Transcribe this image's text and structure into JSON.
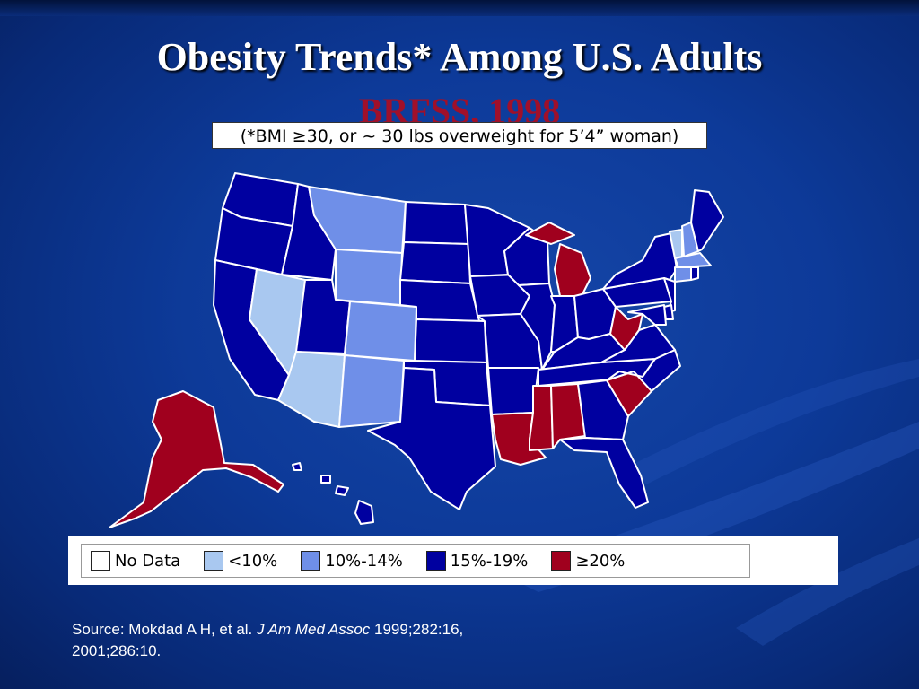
{
  "title": "Obesity Trends* Among U.S. Adults",
  "subtitle": "BRFSS, 1998",
  "note": "(*BMI ≥30, or ~ 30 lbs overweight for 5’4” woman)",
  "colors": {
    "no_data": "#ffffff",
    "lt10": "#a9c8f0",
    "c10_14": "#6f8fe8",
    "c15_19": "#0000a0",
    "ge20": "#a0001e",
    "border": "#ffffff"
  },
  "legend": [
    {
      "label": "No Data",
      "color_key": "no_data"
    },
    {
      "label": "<10%",
      "color_key": "lt10"
    },
    {
      "label": "10%-14%",
      "color_key": "c10_14"
    },
    {
      "label": "15%-19%",
      "color_key": "c15_19"
    },
    {
      "label": "≥20%",
      "color_key": "ge20"
    }
  ],
  "states": {
    "WA": "15-19",
    "OR": "15-19",
    "CA": "15-19",
    "ID": "15-19",
    "NV": "<10",
    "MT": "10-14",
    "WY": "10-14",
    "UT": "15-19",
    "CO": "10-14",
    "AZ": "<10",
    "NM": "10-14",
    "ND": "15-19",
    "SD": "15-19",
    "NE": "15-19",
    "KS": "15-19",
    "OK": "15-19",
    "TX": "15-19",
    "MN": "15-19",
    "IA": "15-19",
    "MO": "15-19",
    "AR": "15-19",
    "LA": ">=20",
    "WI": "15-19",
    "IL": "15-19",
    "MI": ">=20",
    "IN": "15-19",
    "OH": "15-19",
    "KY": "15-19",
    "TN": "15-19",
    "MS": ">=20",
    "AL": ">=20",
    "GA": "15-19",
    "FL": "15-19",
    "SC": ">=20",
    "NC": "15-19",
    "VA": "15-19",
    "WV": ">=20",
    "PA": "15-19",
    "NY": "15-19",
    "VT": "<10",
    "NH": "10-14",
    "ME": "15-19",
    "MA": "10-14",
    "CT": "10-14",
    "RI": "15-19",
    "NJ": "15-19",
    "DE": "15-19",
    "MD": "15-19",
    "AK": ">=20",
    "HI": "15-19"
  },
  "source": {
    "prefix": "Source: Mokdad A H, et al. ",
    "journal": "J Am Med Assoc",
    "suffix": " 1999;282:16,",
    "line2": "2001;286:10."
  }
}
